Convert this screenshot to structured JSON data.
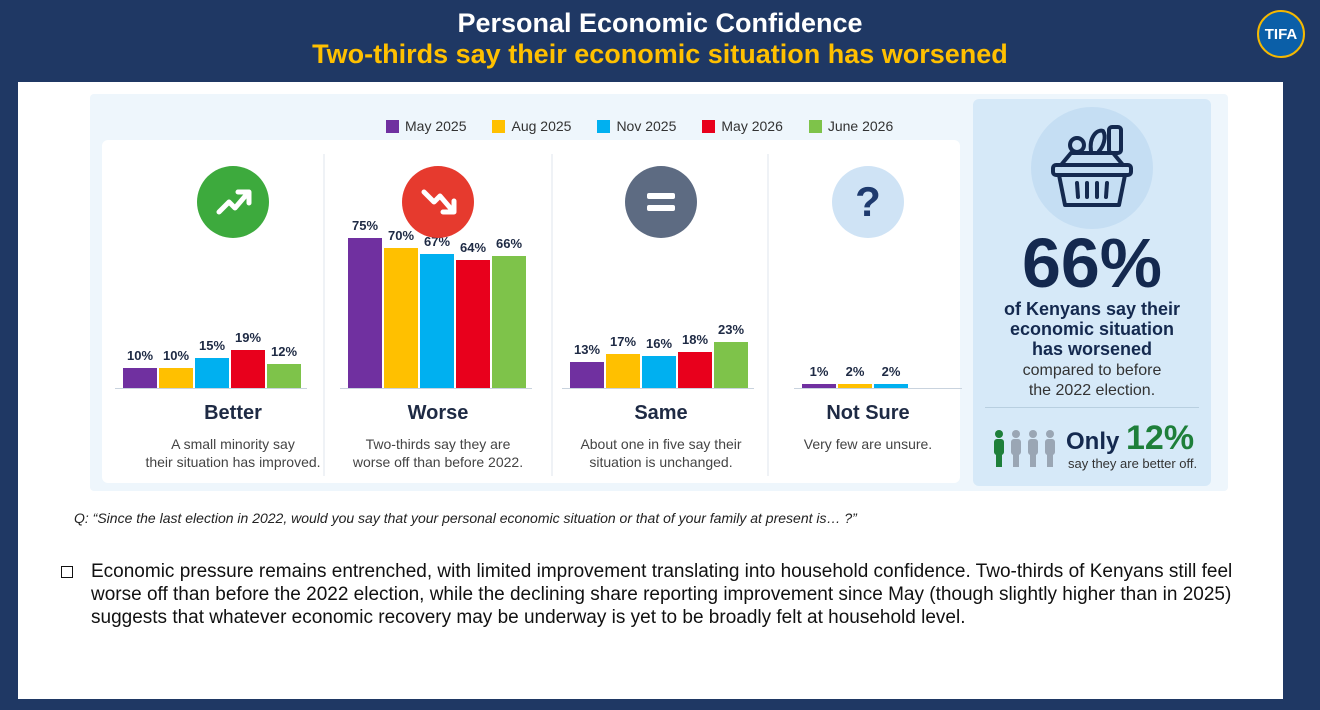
{
  "header": {
    "title": "Personal Economic Confidence",
    "subtitle": "Two-thirds say their economic situation has worsened",
    "logo_text": "TIFA",
    "colors": {
      "background": "#1f3864",
      "title": "#ffffff",
      "subtitle": "#ffc000"
    }
  },
  "chart_data": {
    "type": "bar",
    "title": "",
    "xlabel": "",
    "ylabel": "",
    "series_names": [
      "May 2025",
      "Aug 2025",
      "Nov 2025",
      "May 2026",
      "June 2026"
    ],
    "series_colors": [
      "#7030a0",
      "#ffc000",
      "#00b0f0",
      "#e8001c",
      "#7ec34a"
    ],
    "categories": [
      {
        "name": "Better",
        "description_line1": "A small minority say",
        "description_line2": "their situation has improved.",
        "icon": "trend-up-icon",
        "icon_color": "#3daa3d",
        "values": [
          10,
          10,
          15,
          19,
          12
        ]
      },
      {
        "name": "Worse",
        "description_line1": "Two-thirds say they are",
        "description_line2": "worse off than before 2022.",
        "icon": "trend-down-icon",
        "icon_color": "#e63a2e",
        "values": [
          75,
          70,
          67,
          64,
          66
        ]
      },
      {
        "name": "Same",
        "description_line1": "About one in five say their",
        "description_line2": "situation is unchanged.",
        "icon": "equals-icon",
        "icon_color": "#5d6b82",
        "values": [
          13,
          17,
          16,
          18,
          23
        ]
      },
      {
        "name": "Not Sure",
        "description_line1": "Very few are unsure.",
        "description_line2": "",
        "icon": "question-icon",
        "icon_color": "#1e3a6e",
        "values": [
          1,
          2,
          2
        ]
      }
    ],
    "legend_position": "top",
    "grid": false
  },
  "side_panel": {
    "icon": "shopping-basket-icon",
    "big_value": "66%",
    "headline_line1": "of Kenyans say their",
    "headline_line2": "economic situation",
    "headline_line3": "has worsened",
    "sub_line1": "compared to before",
    "sub_line2": "the 2022 election.",
    "only_label": "Only",
    "only_value": "12%",
    "only_sub": "say they are better off.",
    "people_icon": "people-icon"
  },
  "question": "Q: “Since the last election in 2022, would you say that your personal economic situation or that of your family at present is… ?”",
  "bullet_text": "Economic pressure remains entrenched, with limited improvement translating into household confidence. Two-thirds of Kenyans still feel worse off than before the 2022 election, while the declining share reporting improvement since May (though slightly higher than in 2025) suggests that whatever economic recovery may be underway is yet to be broadly felt at household level."
}
